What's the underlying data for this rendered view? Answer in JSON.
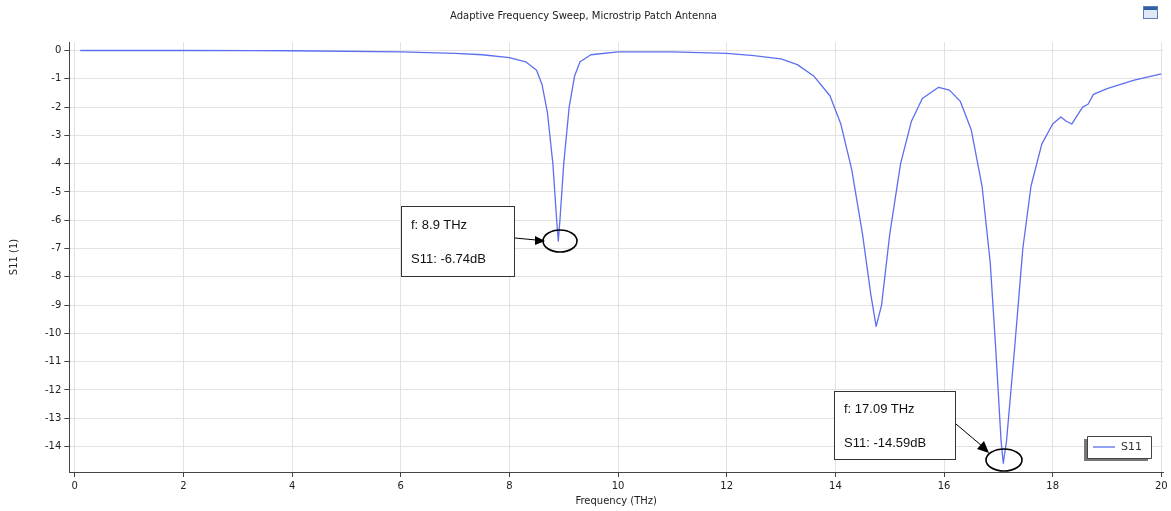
{
  "chart_data": {
    "type": "line",
    "title": "Adaptive Frequency Sweep, Microstrip Patch Antenna",
    "xlabel": "Frequency (THz)",
    "ylabel": "S11 (1)",
    "x": [
      0.1,
      2,
      4,
      6,
      7,
      7.5,
      8,
      8.3,
      8.5,
      8.6,
      8.7,
      8.8,
      8.87,
      8.9,
      8.93,
      9.0,
      9.1,
      9.2,
      9.3,
      9.5,
      10,
      11,
      12,
      12.5,
      13,
      13.3,
      13.6,
      13.9,
      14.1,
      14.3,
      14.5,
      14.65,
      14.75,
      14.85,
      15.0,
      15.2,
      15.4,
      15.6,
      15.9,
      16.1,
      16.3,
      16.5,
      16.7,
      16.85,
      16.95,
      17.05,
      17.09,
      17.15,
      17.3,
      17.45,
      17.6,
      17.8,
      18.0,
      18.15,
      18.25,
      18.35,
      18.45,
      18.55,
      18.65,
      18.75,
      19,
      19.5,
      20
    ],
    "series": [
      {
        "name": "S11",
        "color": "#5b6ff0",
        "values": [
          0,
          0,
          -0.01,
          -0.05,
          -0.1,
          -0.15,
          -0.25,
          -0.4,
          -0.7,
          -1.2,
          -2.2,
          -4,
          -6,
          -6.74,
          -6,
          -4,
          -2,
          -0.9,
          -0.4,
          -0.15,
          -0.05,
          -0.05,
          -0.1,
          -0.18,
          -0.3,
          -0.5,
          -0.9,
          -1.6,
          -2.6,
          -4.2,
          -6.5,
          -8.6,
          -9.75,
          -9,
          -6.5,
          -4,
          -2.5,
          -1.7,
          -1.3,
          -1.4,
          -1.8,
          -2.8,
          -4.8,
          -7.5,
          -10.5,
          -13.8,
          -14.59,
          -13.8,
          -10.5,
          -7,
          -4.8,
          -3.3,
          -2.6,
          -2.35,
          -2.5,
          -2.6,
          -2.3,
          -2.0,
          -1.9,
          -1.55,
          -1.35,
          -1.05,
          -0.83
        ]
      }
    ],
    "xlim": [
      -0.1,
      20.03
    ],
    "xticks": [
      0,
      2,
      4,
      6,
      8,
      10,
      12,
      14,
      16,
      18,
      20
    ],
    "ylim": [
      -14.9,
      0.3
    ],
    "yticks": [
      0,
      -1,
      -2,
      -3,
      -4,
      -5,
      -6,
      -7,
      -8,
      -9,
      -10,
      -11,
      -12,
      -13,
      -14
    ],
    "grid": true,
    "legend": "bottom right",
    "marker": "none",
    "line_style": "solid",
    "annotations": [
      "f: 8.9 THz",
      "S11: -6.74dB",
      "f: 17.09 THz",
      "S11: -14.59dB"
    ]
  }
}
